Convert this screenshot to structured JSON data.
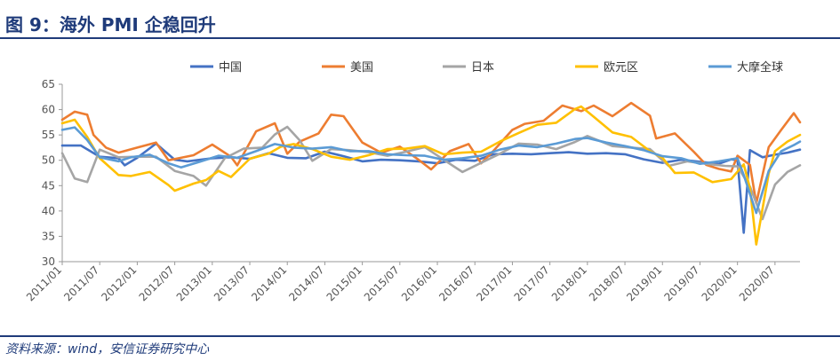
{
  "header": {
    "title": "图 9：海外 PMI 企稳回升"
  },
  "footer": {
    "source": "资料来源：wind，安信证券研究中心"
  },
  "chart_data": {
    "type": "line",
    "title": "",
    "xlabel": "",
    "ylabel": "",
    "ylim": [
      30,
      65
    ],
    "yticks": [
      30,
      35,
      40,
      45,
      50,
      55,
      60,
      65
    ],
    "xticks": [
      "2011/01",
      "2011/07",
      "2012/01",
      "2012/07",
      "2013/01",
      "2013/07",
      "2014/01",
      "2014/07",
      "2015/01",
      "2015/07",
      "2016/01",
      "2016/07",
      "2017/01",
      "2017/07",
      "2018/01",
      "2018/07",
      "2019/01",
      "2019/07",
      "2020/01",
      "2020/07"
    ],
    "x_start": "2011/01",
    "x_end": "2020/11",
    "grid": false,
    "legend": "top",
    "colors": {
      "title": "#1f3b7a",
      "axis": "#999999"
    },
    "series": [
      {
        "name": "中国",
        "color": "#4472c4",
        "points": [
          [
            "2011/01",
            52.9
          ],
          [
            "2011/04",
            52.9
          ],
          [
            "2011/07",
            50.7
          ],
          [
            "2011/10",
            50.4
          ],
          [
            "2011/11",
            49.0
          ],
          [
            "2012/01",
            50.5
          ],
          [
            "2012/04",
            53.3
          ],
          [
            "2012/07",
            50.1
          ],
          [
            "2012/09",
            49.8
          ],
          [
            "2013/01",
            50.4
          ],
          [
            "2013/04",
            50.6
          ],
          [
            "2013/07",
            50.3
          ],
          [
            "2013/10",
            51.4
          ],
          [
            "2014/01",
            50.5
          ],
          [
            "2014/04",
            50.4
          ],
          [
            "2014/07",
            51.7
          ],
          [
            "2014/10",
            50.8
          ],
          [
            "2015/01",
            49.8
          ],
          [
            "2015/04",
            50.1
          ],
          [
            "2015/07",
            50.0
          ],
          [
            "2015/10",
            49.8
          ],
          [
            "2016/01",
            49.4
          ],
          [
            "2016/04",
            50.1
          ],
          [
            "2016/07",
            49.9
          ],
          [
            "2016/10",
            51.2
          ],
          [
            "2017/01",
            51.3
          ],
          [
            "2017/04",
            51.2
          ],
          [
            "2017/07",
            51.4
          ],
          [
            "2017/10",
            51.6
          ],
          [
            "2018/01",
            51.3
          ],
          [
            "2018/04",
            51.4
          ],
          [
            "2018/07",
            51.2
          ],
          [
            "2018/10",
            50.2
          ],
          [
            "2019/01",
            49.5
          ],
          [
            "2019/04",
            50.1
          ],
          [
            "2019/07",
            49.7
          ],
          [
            "2019/10",
            49.3
          ],
          [
            "2019/12",
            50.2
          ],
          [
            "2020/01",
            50.0
          ],
          [
            "2020/02",
            35.7
          ],
          [
            "2020/03",
            52.0
          ],
          [
            "2020/05",
            50.6
          ],
          [
            "2020/07",
            51.1
          ],
          [
            "2020/09",
            51.5
          ],
          [
            "2020/11",
            52.1
          ]
        ]
      },
      {
        "name": "美国",
        "color": "#ed7d31",
        "points": [
          [
            "2011/01",
            58.0
          ],
          [
            "2011/03",
            59.6
          ],
          [
            "2011/05",
            59.0
          ],
          [
            "2011/06",
            55.0
          ],
          [
            "2011/08",
            52.5
          ],
          [
            "2011/10",
            51.5
          ],
          [
            "2012/01",
            52.5
          ],
          [
            "2012/04",
            53.5
          ],
          [
            "2012/06",
            50.0
          ],
          [
            "2012/08",
            50.5
          ],
          [
            "2012/10",
            51.0
          ],
          [
            "2013/01",
            53.1
          ],
          [
            "2013/04",
            50.7
          ],
          [
            "2013/05",
            49.0
          ],
          [
            "2013/08",
            55.7
          ],
          [
            "2013/11",
            57.3
          ],
          [
            "2014/01",
            51.3
          ],
          [
            "2014/03",
            53.7
          ],
          [
            "2014/06",
            55.3
          ],
          [
            "2014/08",
            59.0
          ],
          [
            "2014/10",
            58.7
          ],
          [
            "2015/01",
            53.5
          ],
          [
            "2015/04",
            51.5
          ],
          [
            "2015/07",
            52.7
          ],
          [
            "2015/10",
            50.1
          ],
          [
            "2015/12",
            48.2
          ],
          [
            "2016/03",
            51.8
          ],
          [
            "2016/06",
            53.2
          ],
          [
            "2016/08",
            49.4
          ],
          [
            "2016/10",
            51.9
          ],
          [
            "2017/01",
            56.0
          ],
          [
            "2017/03",
            57.2
          ],
          [
            "2017/06",
            57.8
          ],
          [
            "2017/09",
            60.8
          ],
          [
            "2017/12",
            59.7
          ],
          [
            "2018/02",
            60.8
          ],
          [
            "2018/05",
            58.7
          ],
          [
            "2018/08",
            61.3
          ],
          [
            "2018/11",
            58.8
          ],
          [
            "2018/12",
            54.3
          ],
          [
            "2019/03",
            55.3
          ],
          [
            "2019/06",
            51.7
          ],
          [
            "2019/08",
            49.1
          ],
          [
            "2019/10",
            48.3
          ],
          [
            "2019/12",
            47.8
          ],
          [
            "2020/01",
            50.9
          ],
          [
            "2020/03",
            49.1
          ],
          [
            "2020/04",
            41.5
          ],
          [
            "2020/06",
            52.6
          ],
          [
            "2020/08",
            56.0
          ],
          [
            "2020/10",
            59.3
          ],
          [
            "2020/11",
            57.5
          ]
        ]
      },
      {
        "name": "日本",
        "color": "#a5a5a5",
        "points": [
          [
            "2011/01",
            51.4
          ],
          [
            "2011/03",
            46.4
          ],
          [
            "2011/05",
            45.7
          ],
          [
            "2011/07",
            52.1
          ],
          [
            "2011/10",
            50.6
          ],
          [
            "2012/01",
            50.7
          ],
          [
            "2012/04",
            50.7
          ],
          [
            "2012/07",
            47.9
          ],
          [
            "2012/10",
            46.9
          ],
          [
            "2012/12",
            45.0
          ],
          [
            "2013/03",
            50.4
          ],
          [
            "2013/06",
            52.3
          ],
          [
            "2013/09",
            52.5
          ],
          [
            "2013/11",
            55.1
          ],
          [
            "2014/01",
            56.6
          ],
          [
            "2014/03",
            53.9
          ],
          [
            "2014/05",
            49.9
          ],
          [
            "2014/08",
            52.2
          ],
          [
            "2014/11",
            52.0
          ],
          [
            "2015/02",
            51.6
          ],
          [
            "2015/05",
            50.9
          ],
          [
            "2015/08",
            51.7
          ],
          [
            "2015/11",
            52.6
          ],
          [
            "2016/02",
            50.1
          ],
          [
            "2016/05",
            47.7
          ],
          [
            "2016/08",
            49.5
          ],
          [
            "2016/11",
            51.3
          ],
          [
            "2017/02",
            53.3
          ],
          [
            "2017/05",
            53.1
          ],
          [
            "2017/08",
            52.2
          ],
          [
            "2017/11",
            53.6
          ],
          [
            "2018/01",
            54.8
          ],
          [
            "2018/05",
            52.8
          ],
          [
            "2018/08",
            52.5
          ],
          [
            "2018/11",
            52.2
          ],
          [
            "2019/02",
            48.9
          ],
          [
            "2019/05",
            49.8
          ],
          [
            "2019/08",
            49.3
          ],
          [
            "2019/11",
            48.9
          ],
          [
            "2020/01",
            48.8
          ],
          [
            "2020/03",
            44.8
          ],
          [
            "2020/05",
            38.4
          ],
          [
            "2020/07",
            45.2
          ],
          [
            "2020/09",
            47.7
          ],
          [
            "2020/11",
            49.0
          ]
        ]
      },
      {
        "name": "欧元区",
        "color": "#ffc000",
        "points": [
          [
            "2011/01",
            57.3
          ],
          [
            "2011/03",
            58.0
          ],
          [
            "2011/05",
            54.6
          ],
          [
            "2011/07",
            50.4
          ],
          [
            "2011/10",
            47.1
          ],
          [
            "2011/12",
            46.9
          ],
          [
            "2012/03",
            47.7
          ],
          [
            "2012/06",
            45.1
          ],
          [
            "2012/07",
            44.0
          ],
          [
            "2012/10",
            45.4
          ],
          [
            "2012/12",
            46.1
          ],
          [
            "2013/02",
            47.9
          ],
          [
            "2013/04",
            46.7
          ],
          [
            "2013/07",
            50.3
          ],
          [
            "2013/10",
            51.3
          ],
          [
            "2013/12",
            52.7
          ],
          [
            "2014/02",
            53.2
          ],
          [
            "2014/05",
            52.2
          ],
          [
            "2014/08",
            50.7
          ],
          [
            "2014/11",
            50.1
          ],
          [
            "2015/02",
            51.0
          ],
          [
            "2015/05",
            52.2
          ],
          [
            "2015/08",
            52.3
          ],
          [
            "2015/11",
            52.8
          ],
          [
            "2016/02",
            51.2
          ],
          [
            "2016/05",
            51.5
          ],
          [
            "2016/08",
            51.7
          ],
          [
            "2016/11",
            53.7
          ],
          [
            "2017/02",
            55.4
          ],
          [
            "2017/05",
            57.0
          ],
          [
            "2017/08",
            57.4
          ],
          [
            "2017/11",
            60.1
          ],
          [
            "2017/12",
            60.6
          ],
          [
            "2018/02",
            58.6
          ],
          [
            "2018/05",
            55.5
          ],
          [
            "2018/08",
            54.6
          ],
          [
            "2018/11",
            51.8
          ],
          [
            "2019/01",
            50.5
          ],
          [
            "2019/03",
            47.5
          ],
          [
            "2019/06",
            47.6
          ],
          [
            "2019/09",
            45.7
          ],
          [
            "2019/12",
            46.3
          ],
          [
            "2020/02",
            49.2
          ],
          [
            "2020/03",
            44.5
          ],
          [
            "2020/04",
            33.4
          ],
          [
            "2020/06",
            47.4
          ],
          [
            "2020/07",
            51.8
          ],
          [
            "2020/09",
            53.7
          ],
          [
            "2020/11",
            55.0
          ]
        ]
      },
      {
        "name": "大摩全球",
        "color": "#5b9bd5",
        "points": [
          [
            "2011/01",
            56.0
          ],
          [
            "2011/03",
            56.5
          ],
          [
            "2011/05",
            54.0
          ],
          [
            "2011/07",
            50.6
          ],
          [
            "2011/10",
            49.8
          ],
          [
            "2011/12",
            50.6
          ],
          [
            "2012/03",
            51.1
          ],
          [
            "2012/06",
            49.4
          ],
          [
            "2012/08",
            48.6
          ],
          [
            "2012/11",
            49.7
          ],
          [
            "2013/02",
            50.9
          ],
          [
            "2013/05",
            50.5
          ],
          [
            "2013/08",
            51.8
          ],
          [
            "2013/11",
            53.2
          ],
          [
            "2014/02",
            52.5
          ],
          [
            "2014/05",
            52.3
          ],
          [
            "2014/08",
            52.6
          ],
          [
            "2014/11",
            51.8
          ],
          [
            "2015/02",
            51.8
          ],
          [
            "2015/05",
            51.2
          ],
          [
            "2015/08",
            51.0
          ],
          [
            "2015/11",
            50.9
          ],
          [
            "2016/02",
            50.1
          ],
          [
            "2016/05",
            50.4
          ],
          [
            "2016/08",
            50.9
          ],
          [
            "2016/11",
            52.1
          ],
          [
            "2017/02",
            52.9
          ],
          [
            "2017/05",
            52.6
          ],
          [
            "2017/08",
            53.3
          ],
          [
            "2017/11",
            54.2
          ],
          [
            "2018/01",
            54.4
          ],
          [
            "2018/04",
            53.5
          ],
          [
            "2018/07",
            52.8
          ],
          [
            "2018/10",
            52.0
          ],
          [
            "2019/01",
            50.8
          ],
          [
            "2019/04",
            50.4
          ],
          [
            "2019/07",
            49.3
          ],
          [
            "2019/10",
            49.8
          ],
          [
            "2020/01",
            50.4
          ],
          [
            "2020/02",
            47.1
          ],
          [
            "2020/04",
            39.6
          ],
          [
            "2020/06",
            47.9
          ],
          [
            "2020/08",
            51.8
          ],
          [
            "2020/10",
            53.0
          ],
          [
            "2020/11",
            53.7
          ]
        ]
      }
    ]
  }
}
